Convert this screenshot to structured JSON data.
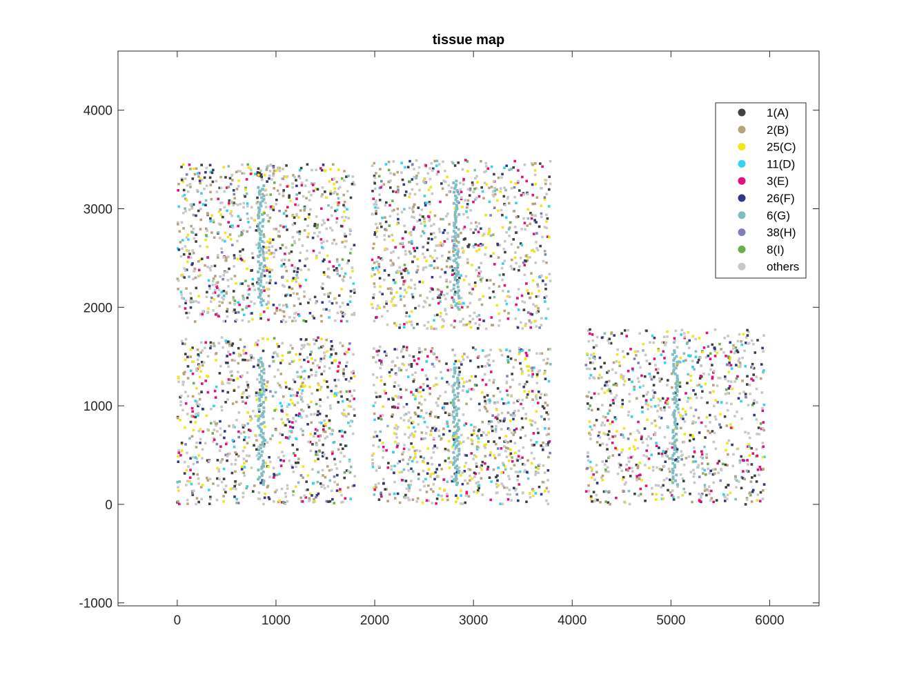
{
  "chart_data": {
    "type": "scatter",
    "title": "tissue map",
    "xlabel": "",
    "ylabel": "",
    "xlim": [
      -600,
      6500
    ],
    "ylim": [
      -1030,
      4600
    ],
    "xticks": [
      0,
      1000,
      2000,
      3000,
      4000,
      5000,
      6000
    ],
    "yticks": [
      -1000,
      0,
      1000,
      2000,
      3000,
      4000
    ],
    "grid": false,
    "legend_position": "top-right",
    "series": [
      {
        "name": "1(A)",
        "color": "#404040"
      },
      {
        "name": "2(B)",
        "color": "#b8a47c"
      },
      {
        "name": "25(C)",
        "color": "#f2e51c"
      },
      {
        "name": "11(D)",
        "color": "#33d1f2"
      },
      {
        "name": "3(E)",
        "color": "#e0117f"
      },
      {
        "name": "26(F)",
        "color": "#2e3a87"
      },
      {
        "name": "6(G)",
        "color": "#7fbfc4"
      },
      {
        "name": "38(H)",
        "color": "#8080b8"
      },
      {
        "name": "8(I)",
        "color": "#6ab04c"
      },
      {
        "name": "others",
        "color": "#c8c8c8"
      }
    ],
    "regions": [
      {
        "x": [
          0,
          1800
        ],
        "y": [
          0,
          1700
        ]
      },
      {
        "x": [
          0,
          1800
        ],
        "y": [
          1850,
          3450
        ]
      },
      {
        "x": [
          1970,
          3780
        ],
        "y": [
          0,
          1600
        ]
      },
      {
        "x": [
          1970,
          3780
        ],
        "y": [
          1780,
          3500
        ]
      },
      {
        "x": [
          4140,
          5950
        ],
        "y": [
          0,
          1780
        ]
      }
    ]
  }
}
